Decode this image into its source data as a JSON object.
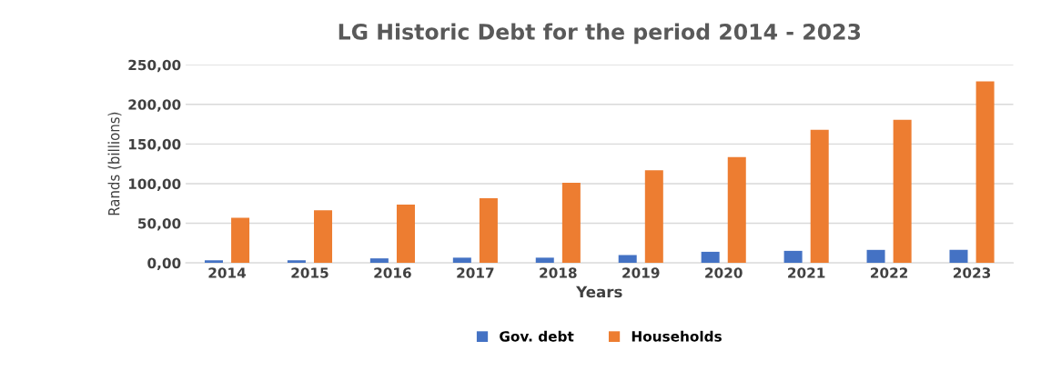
{
  "chart_data": {
    "type": "bar",
    "title": "LG Historic Debt for the period 2014 - 2023",
    "xlabel": "Years",
    "ylabel": "Rands (billions)",
    "categories": [
      "2014",
      "2015",
      "2016",
      "2017",
      "2018",
      "2019",
      "2020",
      "2021",
      "2022",
      "2023"
    ],
    "series": [
      {
        "name": "Gov. debt",
        "color": "#4472c4",
        "values": [
          3.3,
          3.3,
          5.7,
          6.6,
          6.6,
          9.9,
          14,
          15.2,
          16.4,
          16.4
        ]
      },
      {
        "name": "Households",
        "color": "#ed7d31",
        "values": [
          57,
          66.5,
          73.5,
          81.7,
          101,
          117,
          133.4,
          168,
          180.6,
          229
        ]
      }
    ],
    "ylim": [
      0,
      250
    ],
    "yticks": [
      {
        "value": 0,
        "label": "0,00"
      },
      {
        "value": 50,
        "label": "50,00"
      },
      {
        "value": 100,
        "label": "100,00"
      },
      {
        "value": 150,
        "label": "150,00"
      },
      {
        "value": 200,
        "label": "200,00"
      },
      {
        "value": 250,
        "label": "250,00"
      }
    ],
    "grid": "y",
    "legend": "bottom"
  }
}
